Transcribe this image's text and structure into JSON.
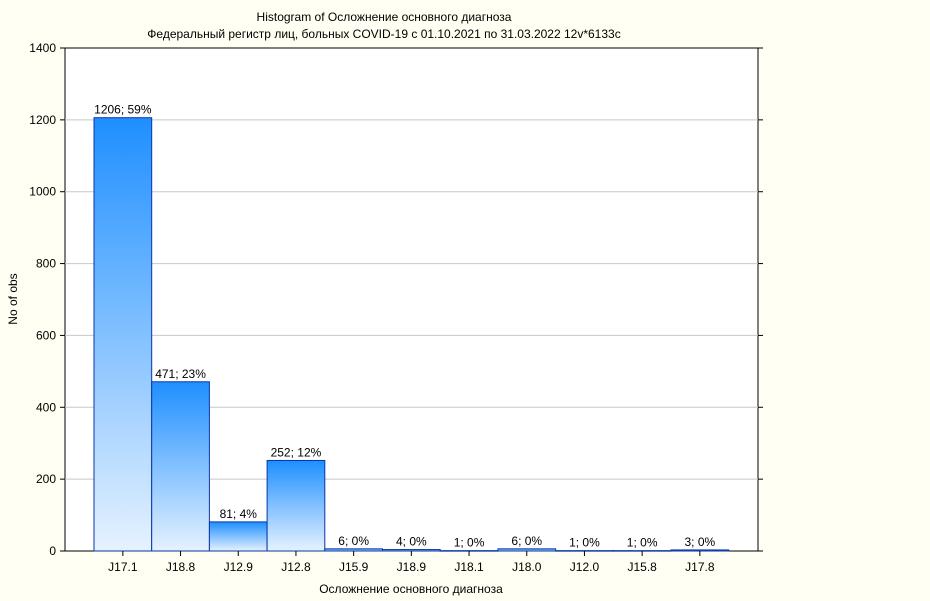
{
  "chart_data": {
    "type": "bar",
    "title": "Histogram of Осложнение основного диагноза",
    "subtitle": "Федеральный регистр лиц, больных COVID-19 с 01.10.2021 по 31.03.2022 12v*6133c",
    "xlabel": "Осложнение основного диагноза",
    "ylabel": "No of obs",
    "ylim": [
      0,
      1400
    ],
    "yticks": [
      0,
      200,
      400,
      600,
      800,
      1000,
      1200,
      1400
    ],
    "grid": true,
    "categories": [
      "J17.1",
      "J18.8",
      "J12.9",
      "J12.8",
      "J15.9",
      "J18.9",
      "J18.1",
      "J18.0",
      "J12.0",
      "J15.8",
      "J17.8"
    ],
    "values": [
      1206,
      471,
      81,
      252,
      6,
      4,
      1,
      6,
      1,
      1,
      3
    ],
    "data_labels": [
      "1206; 59%",
      "471; 23%",
      "81; 4%",
      "252; 12%",
      "6; 0%",
      "4; 0%",
      "1; 0%",
      "6; 0%",
      "1; 0%",
      "1; 0%",
      "3; 0%"
    ],
    "colors": {
      "bar_top": "#1e8fff",
      "bar_bottom": "#e6f2ff",
      "bar_stroke": "#0a36a8",
      "gridline": "#c8c8c8",
      "background": "#fffff4",
      "plot_background": "#ffffff"
    }
  }
}
